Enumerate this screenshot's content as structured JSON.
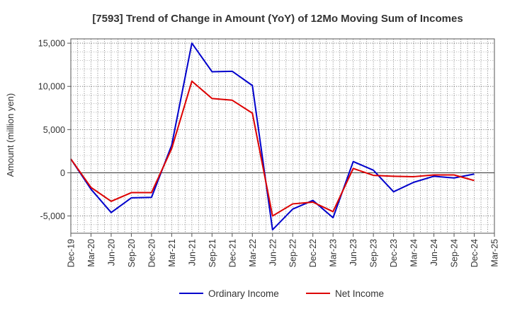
{
  "chart_data": {
    "type": "line",
    "title": "[7593]  Trend of Change in Amount (YoY) of 12Mo Moving Sum of Incomes",
    "xlabel": "",
    "ylabel": "Amount (million yen)",
    "ylim": [
      -7000,
      15500
    ],
    "yticks": [
      -5000,
      0,
      5000,
      10000,
      15000
    ],
    "ytick_labels": [
      "-5,000",
      "0",
      "5,000",
      "10,000",
      "15,000"
    ],
    "x_ticks": [
      "Dec-19",
      "Mar-20",
      "Jun-20",
      "Sep-20",
      "Dec-20",
      "Mar-21",
      "Jun-21",
      "Sep-21",
      "Dec-21",
      "Mar-22",
      "Jun-22",
      "Sep-22",
      "Dec-22",
      "Mar-23",
      "Jun-23",
      "Sep-23",
      "Dec-23",
      "Mar-24",
      "Jun-24",
      "Sep-24",
      "Dec-24",
      "Mar-25"
    ],
    "x": [
      "Dec-19",
      "Mar-20",
      "Jun-20",
      "Sep-20",
      "Dec-20",
      "Mar-21",
      "Jun-21",
      "Sep-21",
      "Dec-21",
      "Mar-22",
      "Jun-22",
      "Sep-22",
      "Dec-22",
      "Mar-23",
      "Jun-23",
      "Sep-23",
      "Dec-23",
      "Mar-24",
      "Jun-24",
      "Sep-24",
      "Dec-24"
    ],
    "grid": true,
    "legend_position": "bottom",
    "series": [
      {
        "name": "Ordinary Income",
        "color": "#0000cc",
        "values": [
          1600,
          -1900,
          -4600,
          -2900,
          -2850,
          3200,
          15000,
          11700,
          11750,
          10100,
          -6600,
          -4200,
          -3200,
          -5200,
          1300,
          300,
          -2200,
          -1100,
          -400,
          -600,
          -150
        ]
      },
      {
        "name": "Net Income",
        "color": "#dd0000",
        "values": [
          1600,
          -1700,
          -3300,
          -2300,
          -2300,
          2800,
          10600,
          8600,
          8400,
          6900,
          -5000,
          -3600,
          -3400,
          -4500,
          500,
          -300,
          -400,
          -450,
          -250,
          -250,
          -900
        ]
      }
    ]
  }
}
